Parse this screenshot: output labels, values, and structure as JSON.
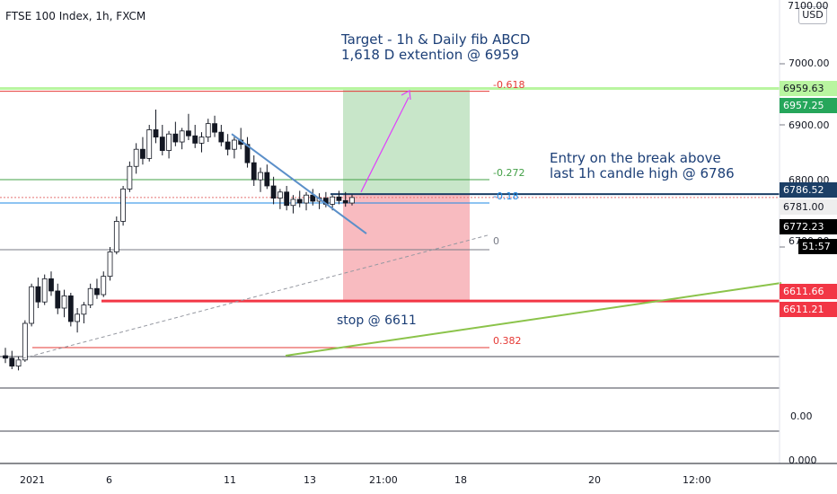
{
  "header": {
    "symbol": "FTSE 100 Index, 1h, FXCM",
    "currency": "USD"
  },
  "notes": {
    "target_line1": "Target - 1h & Daily fib ABCD",
    "target_line2": "1,618 D extention @ 6959",
    "entry_line1": "Entry on the break above",
    "entry_line2": "last 1h candle high @ 6786",
    "stop": "stop @ 6611"
  },
  "fib_levels": [
    {
      "label": "-0.618",
      "color": "#e53935"
    },
    {
      "label": "-0.272",
      "color": "#43a047"
    },
    {
      "label": "-0.18",
      "color": "#1e88e5"
    },
    {
      "label": "0",
      "color": "#787b86"
    },
    {
      "label": "0.382",
      "color": "#e53935"
    }
  ],
  "price_tags": [
    {
      "text": "6959.63",
      "bg": "#b9f5a0",
      "fg": "#131722"
    },
    {
      "text": "6957.25",
      "bg": "#26a65b",
      "fg": "#ffffff"
    },
    {
      "text": "6786.52",
      "bg": "#1c3f66",
      "fg": "#ffffff"
    },
    {
      "text": "6781.00",
      "bg": "#eeeeee",
      "fg": "#131722"
    },
    {
      "text": "6772.23",
      "bg": "#000000",
      "fg": "#ffffff"
    },
    {
      "text": "51:57",
      "bg": "#000000",
      "fg": "#ffffff"
    },
    {
      "text": "6611.66",
      "bg": "#f23645",
      "fg": "#ffffff"
    },
    {
      "text": "6611.21",
      "bg": "#f23645",
      "fg": "#ffffff"
    }
  ],
  "price_axis_labels": [
    "7100.00",
    "7000.00",
    "6900.00",
    "6800.00",
    "6700.00",
    "0.00",
    "0.000"
  ],
  "time_axis_labels": [
    "2021",
    "6",
    "11",
    "13",
    "21:00",
    "18",
    "20",
    "12:00"
  ],
  "colors": {
    "up": "#ffffff",
    "down": "#131722",
    "trendline": "#5b8fc9",
    "arrow": "#e040fb",
    "ascending_line": "#8bc34a",
    "profit_zone": "#c8e6c9",
    "loss_zone": "#f8bbc0",
    "target_line": "#b9f5a0",
    "stop_line": "#f23645",
    "entry_line": "#1c3f66"
  },
  "chart_data": {
    "type": "candlestick",
    "title": "FTSE 100 Index, 1h, FXCM",
    "y_unit": "USD",
    "x_ticks": [
      "2021",
      "6",
      "11",
      "13",
      "21:00",
      "18",
      "20",
      "12:00"
    ],
    "y_ticks": [
      7100,
      7000,
      6900,
      6800,
      6700
    ],
    "levels": {
      "target": 6959.63,
      "target_alt": 6957.25,
      "entry": 6786.52,
      "current": 6781.0,
      "last_close": 6772.23,
      "stop": 6611.66,
      "stop_alt": 6611.21
    },
    "fib_ratios": [
      -0.618,
      -0.272,
      -0.18,
      0,
      0.382
    ],
    "ohlc": [
      [
        6522,
        6535,
        6510,
        6518
      ],
      [
        6518,
        6530,
        6500,
        6505
      ],
      [
        6505,
        6520,
        6498,
        6515
      ],
      [
        6515,
        6580,
        6512,
        6575
      ],
      [
        6575,
        6640,
        6570,
        6635
      ],
      [
        6635,
        6650,
        6600,
        6610
      ],
      [
        6610,
        6655,
        6605,
        6648
      ],
      [
        6648,
        6660,
        6620,
        6628
      ],
      [
        6628,
        6640,
        6590,
        6600
      ],
      [
        6600,
        6630,
        6585,
        6620
      ],
      [
        6620,
        6625,
        6570,
        6578
      ],
      [
        6578,
        6600,
        6560,
        6590
      ],
      [
        6590,
        6610,
        6575,
        6605
      ],
      [
        6605,
        6640,
        6600,
        6632
      ],
      [
        6632,
        6648,
        6615,
        6622
      ],
      [
        6622,
        6660,
        6618,
        6652
      ],
      [
        6652,
        6700,
        6645,
        6692
      ],
      [
        6692,
        6750,
        6688,
        6742
      ],
      [
        6742,
        6800,
        6735,
        6795
      ],
      [
        6795,
        6840,
        6790,
        6832
      ],
      [
        6832,
        6870,
        6820,
        6860
      ],
      [
        6860,
        6880,
        6835,
        6845
      ],
      [
        6845,
        6900,
        6840,
        6892
      ],
      [
        6892,
        6925,
        6870,
        6880
      ],
      [
        6880,
        6900,
        6850,
        6858
      ],
      [
        6858,
        6890,
        6845,
        6885
      ],
      [
        6885,
        6905,
        6865,
        6872
      ],
      [
        6872,
        6895,
        6860,
        6890
      ],
      [
        6890,
        6918,
        6875,
        6882
      ],
      [
        6882,
        6900,
        6862,
        6870
      ],
      [
        6870,
        6888,
        6855,
        6880
      ],
      [
        6880,
        6910,
        6872,
        6902
      ],
      [
        6902,
        6915,
        6880,
        6888
      ],
      [
        6888,
        6900,
        6865,
        6872
      ],
      [
        6872,
        6885,
        6850,
        6860
      ],
      [
        6860,
        6880,
        6845,
        6875
      ],
      [
        6875,
        6895,
        6860,
        6868
      ],
      [
        6868,
        6880,
        6830,
        6838
      ],
      [
        6838,
        6850,
        6800,
        6810
      ],
      [
        6810,
        6830,
        6790,
        6822
      ],
      [
        6822,
        6835,
        6795,
        6800
      ],
      [
        6800,
        6815,
        6770,
        6780
      ],
      [
        6780,
        6795,
        6762,
        6790
      ],
      [
        6790,
        6800,
        6760,
        6768
      ],
      [
        6768,
        6785,
        6755,
        6778
      ],
      [
        6778,
        6792,
        6765,
        6772
      ],
      [
        6772,
        6790,
        6760,
        6785
      ],
      [
        6785,
        6795,
        6768,
        6775
      ],
      [
        6775,
        6788,
        6762,
        6780
      ],
      [
        6780,
        6790,
        6765,
        6770
      ],
      [
        6770,
        6785,
        6760,
        6782
      ],
      [
        6782,
        6792,
        6770,
        6776
      ],
      [
        6776,
        6790,
        6766,
        6772
      ],
      [
        6772,
        6786,
        6768,
        6781
      ]
    ]
  }
}
